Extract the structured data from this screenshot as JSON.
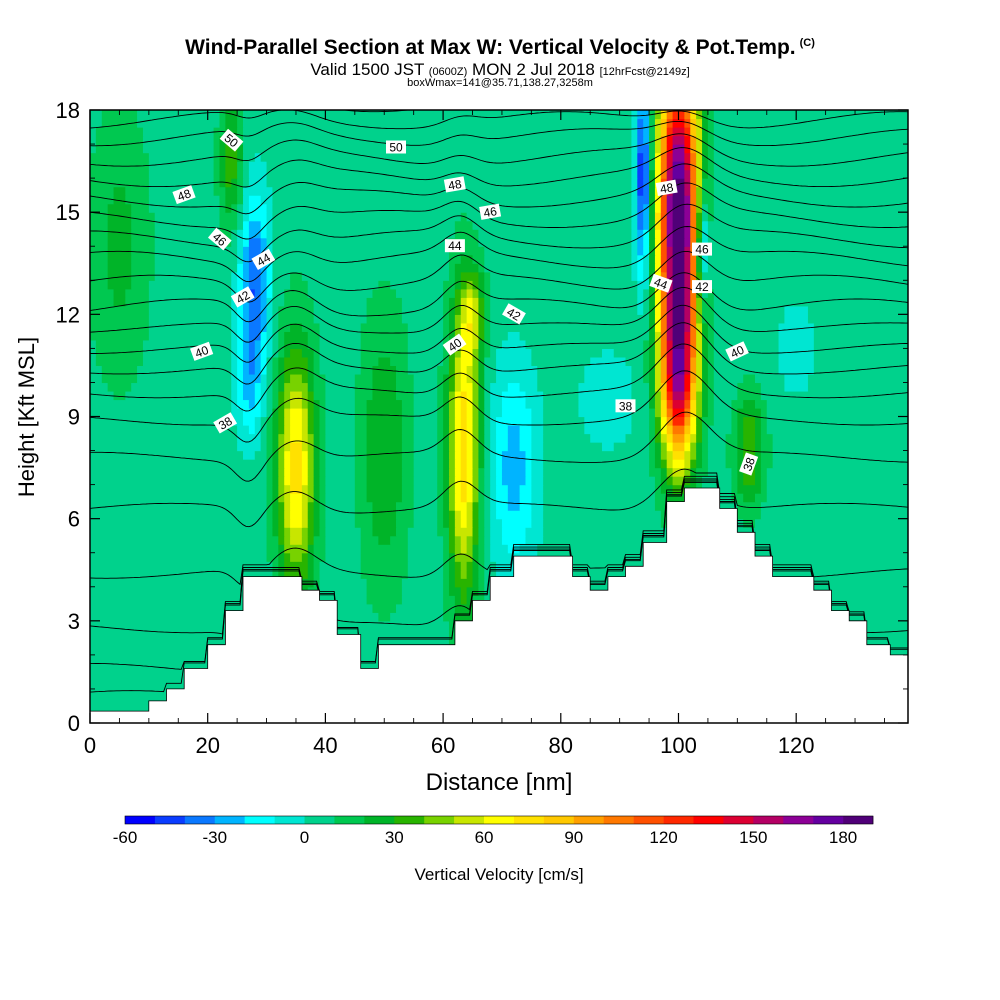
{
  "header": {
    "title": "Wind-Parallel Section at Max W: Vertical Velocity & Pot.Temp.",
    "copyright": "(C)",
    "valid_main": "Valid 1500 JST",
    "valid_utc": "(0600Z)",
    "valid_date": "MON 2 Jul 2018",
    "forecast": "[12hrFcst@2149z]",
    "box_info": "boxWmax=141@35.71,138.27,3258m"
  },
  "chart_data": {
    "type": "heatmap",
    "xlabel": "Distance [nm]",
    "ylabel": "Height [Kft MSL]",
    "xlim": [
      0,
      139
    ],
    "ylim": [
      0,
      18
    ],
    "x_ticks": [
      0,
      20,
      40,
      60,
      80,
      100,
      120
    ],
    "y_ticks": [
      0,
      3,
      6,
      9,
      12,
      15,
      18
    ],
    "colorbar": {
      "label": "Vertical Velocity [cm/s]",
      "range": [
        -60,
        190
      ],
      "step": 10,
      "tick_values": [
        -60,
        -30,
        0,
        30,
        60,
        90,
        120,
        150,
        180
      ],
      "colors": [
        "#0000ff",
        "#0a3cff",
        "#0a78ff",
        "#00b4ff",
        "#00ffff",
        "#00e6d2",
        "#00d28c",
        "#00c850",
        "#00b428",
        "#28b400",
        "#78d200",
        "#c8e600",
        "#ffff00",
        "#ffe100",
        "#ffc800",
        "#ffa000",
        "#ff7800",
        "#ff5000",
        "#ff2800",
        "#ff0000",
        "#dc0032",
        "#b40064",
        "#8c0096",
        "#6400a0",
        "#500078"
      ]
    },
    "terrain": [
      [
        0,
        0.35
      ],
      [
        10,
        0.35
      ],
      [
        10,
        0.65
      ],
      [
        13,
        0.65
      ],
      [
        13,
        1.0
      ],
      [
        16,
        1.0
      ],
      [
        16,
        1.6
      ],
      [
        20,
        1.6
      ],
      [
        20,
        2.3
      ],
      [
        23,
        2.3
      ],
      [
        23,
        3.3
      ],
      [
        26,
        3.3
      ],
      [
        26,
        4.3
      ],
      [
        36,
        4.3
      ],
      [
        36,
        3.9
      ],
      [
        39,
        3.9
      ],
      [
        39,
        3.6
      ],
      [
        42,
        3.6
      ],
      [
        42,
        2.6
      ],
      [
        46,
        2.6
      ],
      [
        46,
        1.6
      ],
      [
        49,
        1.6
      ],
      [
        49,
        2.3
      ],
      [
        62,
        2.3
      ],
      [
        62,
        3.0
      ],
      [
        65,
        3.0
      ],
      [
        65,
        3.6
      ],
      [
        68,
        3.6
      ],
      [
        68,
        4.3
      ],
      [
        72,
        4.3
      ],
      [
        72,
        4.9
      ],
      [
        82,
        4.9
      ],
      [
        82,
        4.3
      ],
      [
        85,
        4.3
      ],
      [
        85,
        3.9
      ],
      [
        88,
        3.9
      ],
      [
        88,
        4.3
      ],
      [
        91,
        4.3
      ],
      [
        91,
        4.6
      ],
      [
        94,
        4.6
      ],
      [
        94,
        5.3
      ],
      [
        98,
        5.3
      ],
      [
        98,
        6.5
      ],
      [
        101,
        6.5
      ],
      [
        101,
        6.9
      ],
      [
        107,
        6.9
      ],
      [
        107,
        6.3
      ],
      [
        110,
        6.3
      ],
      [
        110,
        5.6
      ],
      [
        113,
        5.6
      ],
      [
        113,
        4.9
      ],
      [
        116,
        4.9
      ],
      [
        116,
        4.3
      ],
      [
        123,
        4.3
      ],
      [
        123,
        3.9
      ],
      [
        126,
        3.9
      ],
      [
        126,
        3.3
      ],
      [
        129,
        3.3
      ],
      [
        129,
        3.0
      ],
      [
        132,
        3.0
      ],
      [
        132,
        2.3
      ],
      [
        136,
        2.3
      ],
      [
        136,
        2.0
      ],
      [
        139,
        2.0
      ]
    ],
    "w_features": [
      {
        "x": 35,
        "y": 7.5,
        "sx": 3.2,
        "sy": 3.5,
        "w": 70
      },
      {
        "x": 63.5,
        "y": 8.0,
        "sx": 2.6,
        "sy": 4.2,
        "w": 75
      },
      {
        "x": 100,
        "y": 15.0,
        "sx": 3.4,
        "sy": 4.5,
        "w": 190
      },
      {
        "x": 100,
        "y": 10.0,
        "sx": 3.0,
        "sy": 2.5,
        "w": 110
      },
      {
        "x": 112,
        "y": 8.0,
        "sx": 2.6,
        "sy": 1.6,
        "w": 35
      },
      {
        "x": 65,
        "y": 12.0,
        "sx": 2.0,
        "sy": 1.3,
        "w": 40
      },
      {
        "x": 24,
        "y": 16.5,
        "sx": 2.0,
        "sy": 2.0,
        "w": 30
      },
      {
        "x": 28,
        "y": 13.0,
        "sx": 2.5,
        "sy": 2.5,
        "w": -45
      },
      {
        "x": 27,
        "y": 10.0,
        "sx": 2.2,
        "sy": 1.8,
        "w": -25
      },
      {
        "x": 94,
        "y": 16.0,
        "sx": 1.3,
        "sy": 3.0,
        "w": -60
      },
      {
        "x": 104,
        "y": 14.0,
        "sx": 1.2,
        "sy": 2.0,
        "w": -50
      },
      {
        "x": 72,
        "y": 7.5,
        "sx": 4.0,
        "sy": 3.0,
        "w": -30
      },
      {
        "x": 120,
        "y": 11.0,
        "sx": 3.0,
        "sy": 1.3,
        "w": -15
      },
      {
        "x": 88,
        "y": 9.5,
        "sx": 5.0,
        "sy": 1.5,
        "w": -12
      },
      {
        "x": 50,
        "y": 8.0,
        "sx": 4.0,
        "sy": 4.0,
        "w": 25
      },
      {
        "x": 5,
        "y": 14.0,
        "sx": 5.0,
        "sy": 4.0,
        "w": 18
      }
    ],
    "theta_levels": [
      {
        "value": "38",
        "label_x": 23,
        "label_y": 8.8,
        "rot": -30
      },
      {
        "value": "40",
        "label_x": 19,
        "label_y": 10.9,
        "rot": -20
      },
      {
        "value": "42",
        "label_x": 26,
        "label_y": 12.5,
        "rot": -30
      },
      {
        "value": "44",
        "label_x": 29.5,
        "label_y": 13.6,
        "rot": -30
      },
      {
        "value": "46",
        "label_x": 22,
        "label_y": 14.2,
        "rot": 40
      },
      {
        "value": "48",
        "label_x": 16,
        "label_y": 15.5,
        "rot": -20
      },
      {
        "value": "50",
        "label_x": 24,
        "label_y": 17.1,
        "rot": 40
      },
      {
        "value": "50",
        "label_x": 52,
        "label_y": 16.9,
        "rot": 0
      },
      {
        "value": "48",
        "label_x": 62,
        "label_y": 15.8,
        "rot": -10
      },
      {
        "value": "46",
        "label_x": 68,
        "label_y": 15.0,
        "rot": -10
      },
      {
        "value": "44",
        "label_x": 62,
        "label_y": 14.0,
        "rot": 0
      },
      {
        "value": "42",
        "label_x": 72,
        "label_y": 12.0,
        "rot": 30
      },
      {
        "value": "40",
        "label_x": 62,
        "label_y": 11.1,
        "rot": -35
      },
      {
        "value": "38",
        "label_x": 91,
        "label_y": 9.3,
        "rot": 0
      },
      {
        "value": "48",
        "label_x": 98,
        "label_y": 15.7,
        "rot": -10
      },
      {
        "value": "46",
        "label_x": 104,
        "label_y": 13.9,
        "rot": 0
      },
      {
        "value": "44",
        "label_x": 97,
        "label_y": 12.9,
        "rot": 20
      },
      {
        "value": "42",
        "label_x": 104,
        "label_y": 12.8,
        "rot": 0
      },
      {
        "value": "40",
        "label_x": 110,
        "label_y": 10.9,
        "rot": -25
      },
      {
        "value": "38",
        "label_x": 112,
        "label_y": 7.6,
        "rot": -70
      }
    ]
  }
}
